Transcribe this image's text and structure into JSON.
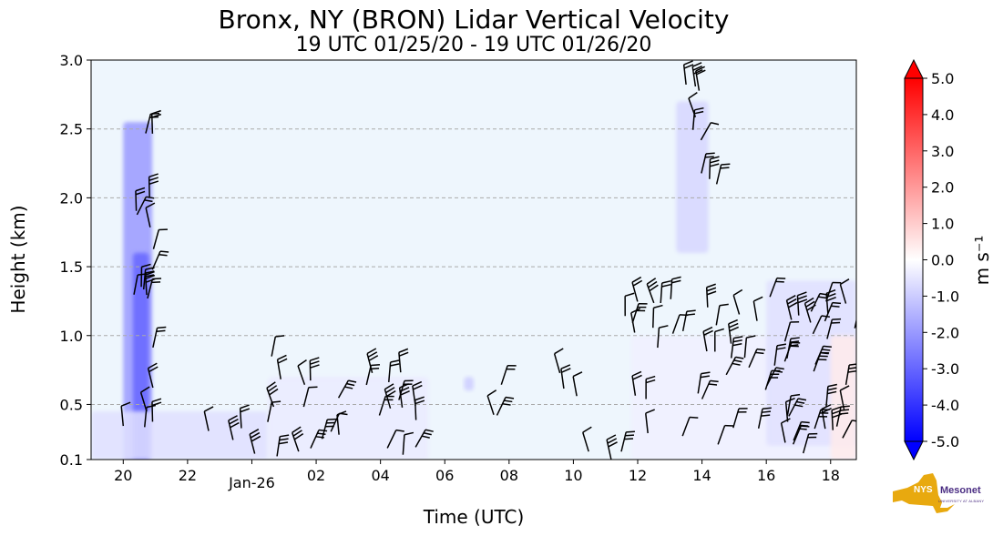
{
  "chart_data": {
    "type": "heatmap",
    "title": "Bronx, NY (BRON) Lidar Vertical Velocity",
    "subtitle": "19 UTC 01/25/20 - 19 UTC 01/26/20",
    "xlabel": "Time (UTC)",
    "ylabel": "Height (km)",
    "colorbar_label": "m s⁻¹",
    "xlim": [
      19,
      42.8
    ],
    "ylim": [
      0.1,
      3.0
    ],
    "x_ticks": [
      {
        "x": 20,
        "label": "20"
      },
      {
        "x": 22,
        "label": "22"
      },
      {
        "x": 24,
        "label": "Jan-26"
      },
      {
        "x": 26,
        "label": "02"
      },
      {
        "x": 28,
        "label": "04"
      },
      {
        "x": 30,
        "label": "06"
      },
      {
        "x": 32,
        "label": "08"
      },
      {
        "x": 34,
        "label": "10"
      },
      {
        "x": 36,
        "label": "12"
      },
      {
        "x": 38,
        "label": "14"
      },
      {
        "x": 40,
        "label": "16"
      },
      {
        "x": 42,
        "label": "18"
      }
    ],
    "y_ticks": [
      {
        "y": 0.1,
        "label": "0.1"
      },
      {
        "y": 0.5,
        "label": "0.5"
      },
      {
        "y": 1.0,
        "label": "1.0"
      },
      {
        "y": 1.5,
        "label": "1.5"
      },
      {
        "y": 2.0,
        "label": "2.0"
      },
      {
        "y": 2.5,
        "label": "2.5"
      },
      {
        "y": 3.0,
        "label": "3.0"
      }
    ],
    "gridlines_y": [
      0.5,
      1.0,
      1.5,
      2.0,
      2.5
    ],
    "grid": "horizontal dashed",
    "colorbar": {
      "vmin": -5.0,
      "vmax": 5.0,
      "ticks": [
        "5.0",
        "4.0",
        "3.0",
        "2.0",
        "1.0",
        "0.0",
        "-1.0",
        "-2.0",
        "-3.0",
        "-4.0",
        "-5.0"
      ],
      "colormap": "bwr",
      "extend": "both"
    },
    "background_color": "#eef6fd",
    "velocity_regions": [
      {
        "x": [
          20.0,
          20.9
        ],
        "y": [
          0.1,
          2.55
        ],
        "velocity": -2.0
      },
      {
        "x": [
          20.3,
          20.8
        ],
        "y": [
          0.1,
          1.6
        ],
        "velocity": -3.0
      },
      {
        "x": [
          19.0,
          24.5
        ],
        "y": [
          0.1,
          0.45
        ],
        "velocity": -0.6
      },
      {
        "x": [
          24.5,
          29.5
        ],
        "y": [
          0.1,
          0.7
        ],
        "velocity": -0.4
      },
      {
        "x": [
          30.6,
          30.9
        ],
        "y": [
          0.6,
          0.7
        ],
        "velocity": -1.0
      },
      {
        "x": [
          37.2,
          38.2
        ],
        "y": [
          1.6,
          2.7
        ],
        "velocity": -0.8
      },
      {
        "x": [
          35.8,
          42.8
        ],
        "y": [
          0.1,
          1.0
        ],
        "velocity": -0.3
      },
      {
        "x": [
          40.0,
          42.8
        ],
        "y": [
          0.2,
          1.4
        ],
        "velocity": -0.6
      },
      {
        "x": [
          42.0,
          42.8
        ],
        "y": [
          0.1,
          1.0
        ],
        "velocity": 0.4
      }
    ],
    "wind_barb_groups": [
      {
        "x": [
          20.0,
          21.0
        ],
        "y": [
          0.15,
          2.6
        ]
      },
      {
        "x": [
          22.5,
          24.5
        ],
        "y": [
          0.1,
          0.45
        ]
      },
      {
        "x": [
          24.5,
          26.0
        ],
        "y": [
          0.1,
          0.85
        ]
      },
      {
        "x": [
          26.0,
          29.5
        ],
        "y": [
          0.1,
          0.75
        ]
      },
      {
        "x": [
          30.8,
          31.8
        ],
        "y": [
          0.4,
          0.65
        ]
      },
      {
        "x": [
          33.5,
          34.5
        ],
        "y": [
          0.55,
          0.75
        ]
      },
      {
        "x": [
          33.8,
          35.5
        ],
        "y": [
          0.1,
          0.2
        ]
      },
      {
        "x": [
          37.3,
          38.5
        ],
        "y": [
          1.9,
          2.9
        ]
      },
      {
        "x": [
          35.6,
          42.8
        ],
        "y": [
          0.1,
          1.3
        ]
      }
    ]
  },
  "colors": {
    "background": "#eef6fd",
    "grid": "#aaaaaa",
    "barb": "#000000",
    "logo_yellow": "#e8a90f",
    "logo_purple": "#4b2e83"
  },
  "logo": {
    "text": "Mesonet",
    "state": "NYS",
    "sub": "UNIVERSITY AT ALBANY"
  }
}
